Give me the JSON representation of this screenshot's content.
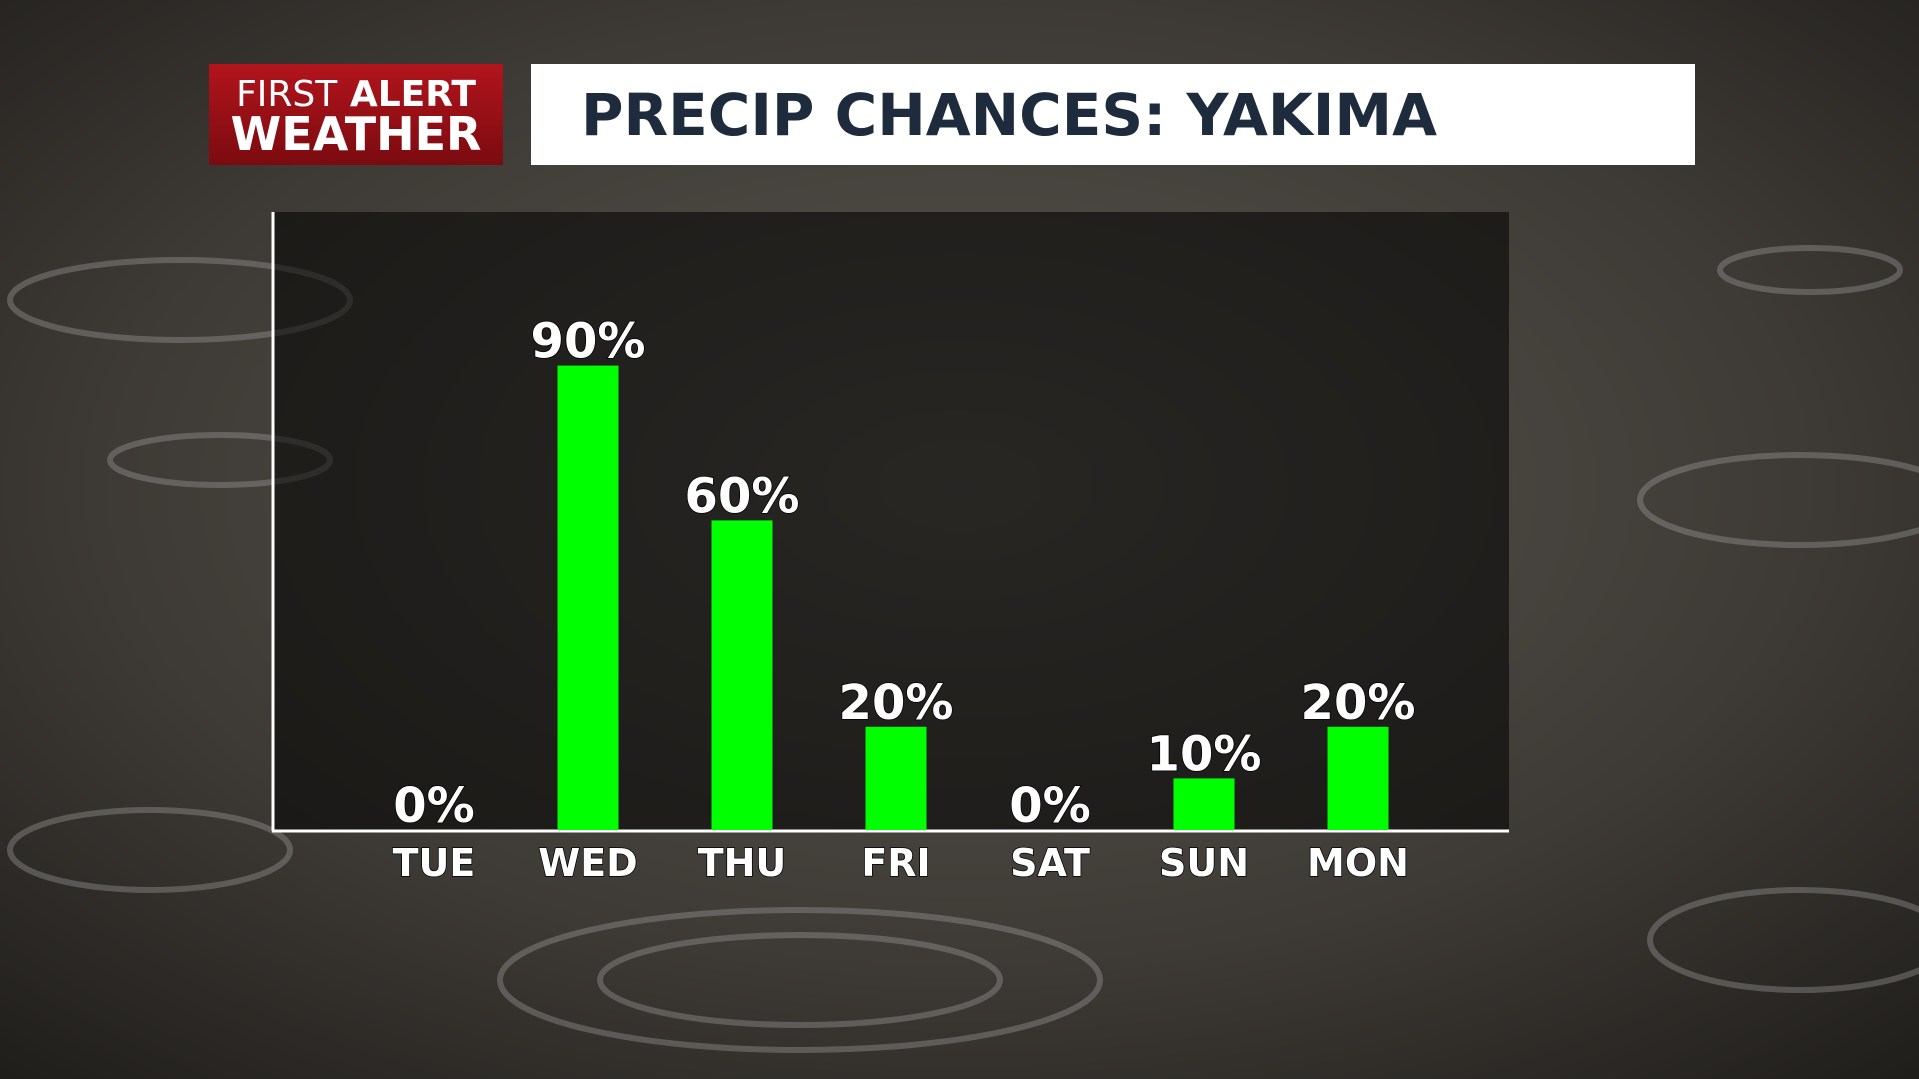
{
  "branding": {
    "line1a": "FIRST",
    "line1b": "ALERT",
    "line2": "WEATHER"
  },
  "chart_data": {
    "type": "bar",
    "title": "PRECIP CHANCES: YAKIMA",
    "categories": [
      "TUE",
      "WED",
      "THU",
      "FRI",
      "SAT",
      "SUN",
      "MON"
    ],
    "values": [
      0,
      90,
      60,
      20,
      0,
      10,
      20
    ],
    "value_labels": [
      "0%",
      "90%",
      "60%",
      "20%",
      "0%",
      "10%",
      "20%"
    ],
    "color": "#00ff00",
    "ylim": [
      0,
      100
    ]
  }
}
